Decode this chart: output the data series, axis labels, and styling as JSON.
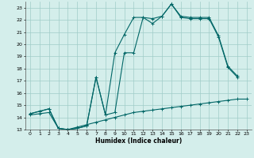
{
  "xlabel": "Humidex (Indice chaleur)",
  "xlim": [
    -0.5,
    23.5
  ],
  "ylim": [
    13,
    23.5
  ],
  "xticks": [
    0,
    1,
    2,
    3,
    4,
    5,
    6,
    7,
    8,
    9,
    10,
    11,
    12,
    13,
    14,
    15,
    16,
    17,
    18,
    19,
    20,
    21,
    22,
    23
  ],
  "yticks": [
    13,
    14,
    15,
    16,
    17,
    18,
    19,
    20,
    21,
    22,
    23
  ],
  "background_color": "#d4eeeb",
  "grid_color": "#a0ccc8",
  "line_color": "#006666",
  "line1_x": [
    0,
    1,
    2,
    3,
    4,
    5,
    6,
    7,
    8,
    9,
    10,
    11,
    12,
    13,
    14,
    15,
    16,
    17,
    18,
    19,
    20,
    21,
    22
  ],
  "line1_y": [
    14.3,
    14.5,
    14.7,
    13.1,
    13.0,
    13.1,
    13.3,
    17.3,
    14.2,
    19.3,
    20.8,
    22.2,
    22.2,
    21.7,
    22.3,
    23.3,
    22.3,
    22.2,
    22.2,
    22.2,
    20.7,
    18.2,
    17.4
  ],
  "line2_x": [
    0,
    1,
    2,
    3,
    4,
    5,
    6,
    7,
    8,
    9,
    10,
    11,
    12,
    13,
    14,
    15,
    16,
    17,
    18,
    19,
    20,
    21,
    22
  ],
  "line2_y": [
    14.3,
    14.5,
    14.7,
    13.1,
    13.0,
    13.1,
    13.3,
    17.3,
    14.2,
    14.4,
    19.3,
    19.3,
    22.2,
    22.1,
    22.3,
    23.3,
    22.2,
    22.1,
    22.1,
    22.1,
    20.6,
    18.1,
    17.3
  ],
  "line3_x": [
    0,
    1,
    2,
    3,
    4,
    5,
    6,
    7,
    8,
    9,
    10,
    11,
    12,
    13,
    14,
    15,
    16,
    17,
    18,
    19,
    20,
    21,
    22,
    23
  ],
  "line3_y": [
    14.2,
    14.3,
    14.4,
    13.1,
    13.0,
    13.2,
    13.4,
    13.6,
    13.8,
    14.0,
    14.2,
    14.4,
    14.5,
    14.6,
    14.7,
    14.8,
    14.9,
    15.0,
    15.1,
    15.2,
    15.3,
    15.4,
    15.5,
    15.5
  ]
}
